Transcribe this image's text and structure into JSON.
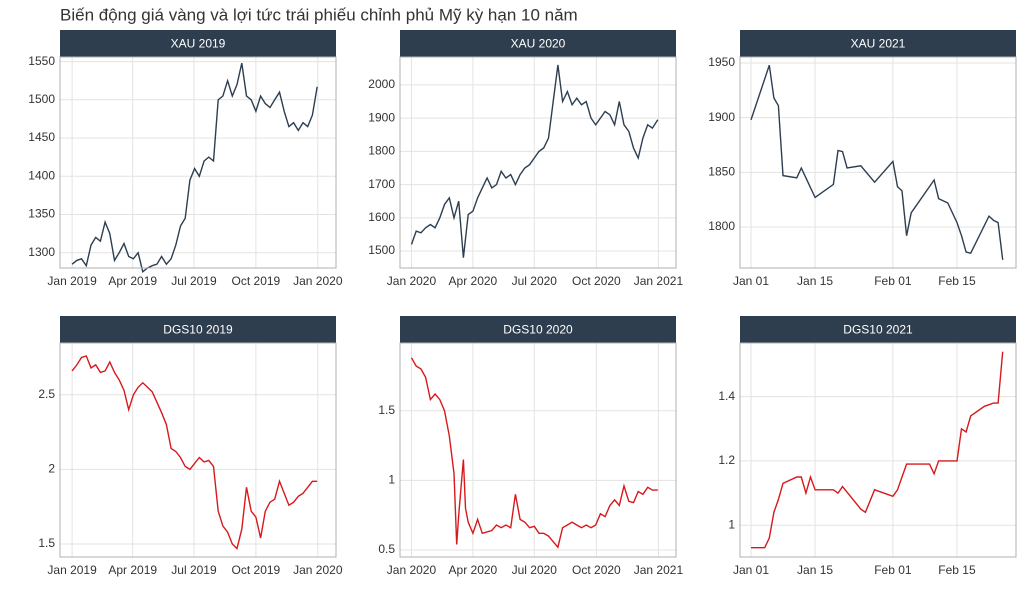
{
  "title": "Biến động giá vàng và lợi tức trái phiếu chỉnh phủ Mỹ kỳ hạn 10 năm",
  "chart_data": [
    {
      "type": "line",
      "title": "XAU 2019",
      "color": "#2c3e50",
      "grid": true,
      "xlim": [
        -17,
        393
      ],
      "xticks": [
        {
          "value": 1,
          "label": "Jan 2019"
        },
        {
          "value": 91,
          "label": "Apr 2019"
        },
        {
          "value": 182,
          "label": "Jul 2019"
        },
        {
          "value": 274,
          "label": "Oct 2019"
        },
        {
          "value": 366,
          "label": "Jan 2020"
        }
      ],
      "ylim": [
        1280,
        1556
      ],
      "yticks": [
        1300,
        1350,
        1400,
        1450,
        1500,
        1550
      ],
      "x": [
        1,
        8,
        15,
        22,
        29,
        36,
        43,
        50,
        57,
        64,
        71,
        78,
        85,
        92,
        99,
        106,
        113,
        120,
        127,
        134,
        141,
        148,
        155,
        162,
        169,
        176,
        183,
        190,
        197,
        204,
        211,
        218,
        225,
        232,
        239,
        246,
        253,
        260,
        267,
        274,
        281,
        288,
        295,
        302,
        309,
        316,
        323,
        330,
        337,
        344,
        351,
        358,
        365
      ],
      "values": [
        1285,
        1290,
        1292,
        1283,
        1310,
        1320,
        1315,
        1340,
        1325,
        1290,
        1300,
        1312,
        1295,
        1292,
        1300,
        1275,
        1280,
        1283,
        1285,
        1295,
        1285,
        1292,
        1310,
        1335,
        1345,
        1395,
        1410,
        1400,
        1420,
        1425,
        1420,
        1500,
        1505,
        1525,
        1505,
        1520,
        1548,
        1505,
        1500,
        1485,
        1505,
        1495,
        1490,
        1500,
        1510,
        1485,
        1465,
        1470,
        1460,
        1470,
        1465,
        1480,
        1517
      ]
    },
    {
      "type": "line",
      "title": "XAU 2020",
      "color": "#2c3e50",
      "grid": true,
      "xlim": [
        -16,
        393
      ],
      "xticks": [
        {
          "value": 1,
          "label": "Jan 2020"
        },
        {
          "value": 92,
          "label": "Apr 2020"
        },
        {
          "value": 183,
          "label": "Jul 2020"
        },
        {
          "value": 275,
          "label": "Oct 2020"
        },
        {
          "value": 367,
          "label": "Jan 2021"
        }
      ],
      "ylim": [
        1449,
        2084
      ],
      "yticks": [
        1500,
        1600,
        1700,
        1800,
        1900,
        2000
      ],
      "x": [
        1,
        8,
        15,
        22,
        29,
        36,
        43,
        50,
        57,
        64,
        71,
        78,
        85,
        92,
        99,
        106,
        113,
        120,
        127,
        134,
        141,
        148,
        155,
        162,
        169,
        176,
        183,
        190,
        197,
        204,
        211,
        218,
        225,
        232,
        239,
        246,
        253,
        260,
        267,
        274,
        281,
        288,
        295,
        302,
        309,
        316,
        323,
        330,
        337,
        344,
        351,
        358,
        366
      ],
      "values": [
        1520,
        1560,
        1555,
        1570,
        1580,
        1570,
        1600,
        1640,
        1660,
        1600,
        1650,
        1480,
        1610,
        1620,
        1660,
        1690,
        1720,
        1690,
        1700,
        1740,
        1720,
        1730,
        1700,
        1730,
        1750,
        1760,
        1780,
        1800,
        1810,
        1840,
        1950,
        2060,
        1950,
        1980,
        1940,
        1960,
        1940,
        1950,
        1900,
        1880,
        1900,
        1920,
        1910,
        1880,
        1950,
        1880,
        1860,
        1810,
        1780,
        1840,
        1880,
        1870,
        1895
      ]
    },
    {
      "type": "line",
      "title": "XAU 2021",
      "color": "#2c3e50",
      "grid": true,
      "xlim": [
        -1.4,
        58.9
      ],
      "xticks": [
        {
          "value": 1,
          "label": "Jan 01"
        },
        {
          "value": 15,
          "label": "Jan 15"
        },
        {
          "value": 32,
          "label": "Feb 01"
        },
        {
          "value": 46,
          "label": "Feb 15"
        }
      ],
      "ylim": [
        1762.5,
        1955.5
      ],
      "yticks": [
        1800,
        1850,
        1900,
        1950
      ],
      "x": [
        1,
        5,
        6,
        7,
        8,
        11,
        12,
        13,
        15,
        19,
        20,
        21,
        22,
        25,
        28,
        32,
        33,
        34,
        35,
        36,
        41,
        42,
        44,
        46,
        47,
        48,
        49,
        53,
        54,
        55,
        56
      ],
      "values": [
        1898,
        1948,
        1918,
        1911,
        1847,
        1845,
        1854,
        1845,
        1827,
        1839,
        1870,
        1869,
        1854,
        1856,
        1841,
        1860,
        1837,
        1833,
        1792,
        1813,
        1843,
        1826,
        1822,
        1804,
        1792,
        1777,
        1776,
        1810,
        1806,
        1804,
        1770
      ]
    },
    {
      "type": "line",
      "title": "DGS10 2019",
      "color": "#d7191c",
      "grid": true,
      "xlim": [
        -17,
        393
      ],
      "xticks": [
        {
          "value": 1,
          "label": "Jan 2019"
        },
        {
          "value": 91,
          "label": "Apr 2019"
        },
        {
          "value": 182,
          "label": "Jul 2019"
        },
        {
          "value": 274,
          "label": "Oct 2019"
        },
        {
          "value": 366,
          "label": "Jan 2020"
        }
      ],
      "ylim": [
        1.413,
        2.847
      ],
      "yticks": [
        1.5,
        2.0,
        2.5
      ],
      "x": [
        1,
        8,
        15,
        22,
        29,
        36,
        43,
        50,
        57,
        64,
        71,
        78,
        85,
        92,
        99,
        106,
        113,
        120,
        127,
        134,
        141,
        148,
        155,
        162,
        169,
        176,
        183,
        190,
        197,
        204,
        211,
        218,
        225,
        232,
        239,
        246,
        253,
        260,
        267,
        274,
        281,
        288,
        295,
        302,
        309,
        316,
        323,
        330,
        337,
        344,
        351,
        358,
        365
      ],
      "values": [
        2.66,
        2.7,
        2.75,
        2.76,
        2.68,
        2.7,
        2.65,
        2.66,
        2.72,
        2.65,
        2.6,
        2.53,
        2.4,
        2.5,
        2.55,
        2.58,
        2.55,
        2.52,
        2.45,
        2.38,
        2.3,
        2.14,
        2.12,
        2.08,
        2.02,
        2.0,
        2.04,
        2.08,
        2.05,
        2.06,
        2.02,
        1.72,
        1.62,
        1.58,
        1.5,
        1.47,
        1.6,
        1.88,
        1.72,
        1.68,
        1.54,
        1.72,
        1.78,
        1.8,
        1.92,
        1.84,
        1.76,
        1.78,
        1.82,
        1.84,
        1.88,
        1.92,
        1.92
      ]
    },
    {
      "type": "line",
      "title": "DGS10 2020",
      "color": "#d7191c",
      "grid": true,
      "xlim": [
        -16,
        393
      ],
      "xticks": [
        {
          "value": 1,
          "label": "Jan 2020"
        },
        {
          "value": 92,
          "label": "Apr 2020"
        },
        {
          "value": 183,
          "label": "Jul 2020"
        },
        {
          "value": 275,
          "label": "Oct 2020"
        },
        {
          "value": 367,
          "label": "Jan 2021"
        }
      ],
      "ylim": [
        0.45,
        1.986
      ],
      "yticks": [
        0.5,
        1.0,
        1.5
      ],
      "x": [
        1,
        8,
        15,
        22,
        29,
        36,
        43,
        50,
        57,
        64,
        68,
        71,
        78,
        81,
        85,
        92,
        99,
        106,
        113,
        120,
        127,
        134,
        141,
        148,
        155,
        162,
        169,
        176,
        183,
        190,
        197,
        204,
        211,
        218,
        225,
        232,
        239,
        246,
        253,
        260,
        267,
        274,
        281,
        288,
        295,
        302,
        309,
        316,
        323,
        330,
        337,
        344,
        351,
        358,
        366
      ],
      "values": [
        1.88,
        1.82,
        1.8,
        1.74,
        1.58,
        1.62,
        1.58,
        1.5,
        1.32,
        1.05,
        0.54,
        0.75,
        1.15,
        0.8,
        0.7,
        0.62,
        0.72,
        0.62,
        0.63,
        0.64,
        0.68,
        0.66,
        0.68,
        0.66,
        0.9,
        0.72,
        0.7,
        0.66,
        0.67,
        0.62,
        0.62,
        0.6,
        0.56,
        0.52,
        0.66,
        0.68,
        0.7,
        0.68,
        0.66,
        0.68,
        0.66,
        0.68,
        0.76,
        0.74,
        0.82,
        0.86,
        0.82,
        0.96,
        0.85,
        0.84,
        0.92,
        0.9,
        0.95,
        0.93,
        0.93
      ]
    },
    {
      "type": "line",
      "title": "DGS10 2021",
      "color": "#d7191c",
      "grid": true,
      "xlim": [
        -1.4,
        58.9
      ],
      "xticks": [
        {
          "value": 1,
          "label": "Jan 01"
        },
        {
          "value": 15,
          "label": "Jan 15"
        },
        {
          "value": 32,
          "label": "Feb 01"
        },
        {
          "value": 46,
          "label": "Feb 15"
        }
      ],
      "ylim": [
        0.901,
        1.567
      ],
      "yticks": [
        1.0,
        1.2,
        1.4
      ],
      "x": [
        1,
        4,
        5,
        6,
        7,
        8,
        11,
        12,
        13,
        14,
        15,
        19,
        20,
        21,
        25,
        26,
        28,
        32,
        33,
        34,
        35,
        40,
        41,
        42,
        46,
        47,
        48,
        49,
        52,
        54,
        55,
        56
      ],
      "values": [
        0.93,
        0.93,
        0.96,
        1.04,
        1.08,
        1.13,
        1.15,
        1.15,
        1.1,
        1.15,
        1.11,
        1.11,
        1.1,
        1.12,
        1.05,
        1.04,
        1.11,
        1.09,
        1.11,
        1.15,
        1.19,
        1.19,
        1.16,
        1.2,
        1.2,
        1.3,
        1.29,
        1.34,
        1.37,
        1.38,
        1.38,
        1.54
      ]
    }
  ]
}
